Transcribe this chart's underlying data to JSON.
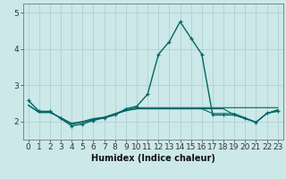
{
  "title": "",
  "xlabel": "Humidex (Indice chaleur)",
  "x": [
    0,
    1,
    2,
    3,
    4,
    5,
    6,
    7,
    8,
    9,
    10,
    11,
    12,
    13,
    14,
    15,
    16,
    17,
    18,
    19,
    20,
    21,
    22,
    23
  ],
  "y_main": [
    2.58,
    2.28,
    2.28,
    2.08,
    1.88,
    1.93,
    2.03,
    2.1,
    2.18,
    2.35,
    2.42,
    2.75,
    3.85,
    4.2,
    4.75,
    4.3,
    3.85,
    2.18,
    2.18,
    2.18,
    2.08,
    1.98,
    2.23,
    2.28
  ],
  "y_line1": [
    2.45,
    2.25,
    2.25,
    2.1,
    1.95,
    2.0,
    2.08,
    2.12,
    2.22,
    2.32,
    2.38,
    2.38,
    2.38,
    2.38,
    2.38,
    2.38,
    2.38,
    2.38,
    2.38,
    2.38,
    2.38,
    2.38,
    2.38,
    2.38
  ],
  "y_line2": [
    2.45,
    2.25,
    2.25,
    2.1,
    1.93,
    1.98,
    2.06,
    2.1,
    2.2,
    2.3,
    2.35,
    2.35,
    2.35,
    2.35,
    2.35,
    2.35,
    2.35,
    2.35,
    2.35,
    2.18,
    2.08,
    1.98,
    2.22,
    2.32
  ],
  "y_line3": [
    2.45,
    2.25,
    2.25,
    2.1,
    1.93,
    1.98,
    2.06,
    2.1,
    2.2,
    2.3,
    2.35,
    2.35,
    2.35,
    2.35,
    2.35,
    2.35,
    2.35,
    2.22,
    2.22,
    2.22,
    2.1,
    1.98,
    2.22,
    2.32
  ],
  "line_color": "#006666",
  "bg_color": "#cce8e8",
  "grid_color": "#aacece",
  "ylim": [
    1.5,
    5.25
  ],
  "yticks": [
    2,
    3,
    4,
    5
  ],
  "xlim": [
    -0.5,
    23.5
  ],
  "xticks": [
    0,
    1,
    2,
    3,
    4,
    5,
    6,
    7,
    8,
    9,
    10,
    11,
    12,
    13,
    14,
    15,
    16,
    17,
    18,
    19,
    20,
    21,
    22,
    23
  ],
  "xlabel_fontsize": 7,
  "tick_fontsize": 6.5
}
